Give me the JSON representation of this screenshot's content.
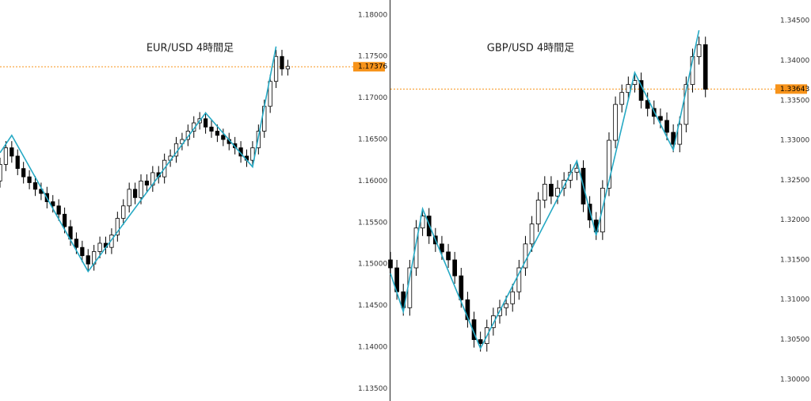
{
  "chart_data": [
    {
      "type": "candlestick",
      "title": "EUR/USD 4時間足",
      "ylim": [
        1.1335,
        1.1818
      ],
      "yticks": [
        {
          "value": 1.135,
          "label": "1.13500"
        },
        {
          "value": 1.14,
          "label": "1.14000"
        },
        {
          "value": 1.145,
          "label": "1.14500"
        },
        {
          "value": 1.15,
          "label": "1.15000"
        },
        {
          "value": 1.155,
          "label": "1.15500"
        },
        {
          "value": 1.16,
          "label": "1.16000"
        },
        {
          "value": 1.165,
          "label": "1.16500"
        },
        {
          "value": 1.17,
          "label": "1.17000"
        },
        {
          "value": 1.175,
          "label": "1.17500"
        },
        {
          "value": 1.18,
          "label": "1.18000"
        }
      ],
      "xlim": [
        0,
        60
      ],
      "candle_color": "#000000",
      "last_price": 1.17376,
      "last_price_color": "#f7931a",
      "open": [
        1.16,
        1.162,
        1.164,
        1.163,
        1.1615,
        1.1605,
        1.1598,
        1.159,
        1.1585,
        1.1575,
        1.157,
        1.156,
        1.1545,
        1.153,
        1.152,
        1.151,
        1.15,
        1.1515,
        1.1525,
        1.152,
        1.1535,
        1.1555,
        1.157,
        1.159,
        1.158,
        1.16,
        1.1595,
        1.161,
        1.1605,
        1.1625,
        1.163,
        1.1645,
        1.165,
        1.166,
        1.167,
        1.1675,
        1.1665,
        1.166,
        1.1655,
        1.165,
        1.1645,
        1.164,
        1.163,
        1.1625,
        1.164,
        1.166,
        1.169,
        1.172,
        1.175,
        1.1735
      ],
      "high": [
        1.1628,
        1.1648,
        1.1648,
        1.1638,
        1.1623,
        1.1613,
        1.1606,
        1.1598,
        1.1593,
        1.1583,
        1.1578,
        1.1568,
        1.1553,
        1.1538,
        1.1528,
        1.1518,
        1.1523,
        1.1533,
        1.1533,
        1.1543,
        1.1563,
        1.1578,
        1.1598,
        1.1598,
        1.1608,
        1.1608,
        1.1618,
        1.1618,
        1.1633,
        1.1638,
        1.1653,
        1.1658,
        1.1668,
        1.1678,
        1.1683,
        1.1683,
        1.1673,
        1.1668,
        1.1663,
        1.1658,
        1.1653,
        1.1648,
        1.1638,
        1.1648,
        1.1668,
        1.1698,
        1.1728,
        1.1758,
        1.1758,
        1.1746
      ],
      "low": [
        1.1592,
        1.1612,
        1.1622,
        1.1607,
        1.1597,
        1.159,
        1.1582,
        1.1577,
        1.1567,
        1.1562,
        1.1552,
        1.1537,
        1.1522,
        1.1512,
        1.1502,
        1.1492,
        1.1492,
        1.1507,
        1.1512,
        1.1512,
        1.1527,
        1.1547,
        1.1562,
        1.1572,
        1.1572,
        1.1587,
        1.1587,
        1.1597,
        1.1597,
        1.1617,
        1.1622,
        1.1637,
        1.1642,
        1.1652,
        1.1662,
        1.1657,
        1.1652,
        1.1647,
        1.1642,
        1.1637,
        1.1632,
        1.1622,
        1.1617,
        1.1617,
        1.1632,
        1.1652,
        1.1682,
        1.1712,
        1.1727,
        1.1727
      ],
      "close": [
        1.162,
        1.164,
        1.163,
        1.1615,
        1.1605,
        1.1598,
        1.159,
        1.1585,
        1.1575,
        1.157,
        1.156,
        1.1545,
        1.153,
        1.152,
        1.151,
        1.15,
        1.1515,
        1.1525,
        1.152,
        1.1535,
        1.1555,
        1.157,
        1.159,
        1.158,
        1.16,
        1.1595,
        1.161,
        1.1605,
        1.1625,
        1.163,
        1.1645,
        1.165,
        1.166,
        1.167,
        1.1675,
        1.1665,
        1.166,
        1.1655,
        1.165,
        1.1645,
        1.164,
        1.163,
        1.1625,
        1.164,
        1.166,
        1.169,
        1.172,
        1.175,
        1.1735,
        1.1738
      ],
      "zigzag": {
        "color": "#26a9c4",
        "x": [
          0,
          2,
          15,
          35,
          43,
          47
        ],
        "values": [
          1.1634,
          1.1655,
          1.1491,
          1.1682,
          1.1617,
          1.1762
        ]
      }
    },
    {
      "type": "candlestick",
      "title": "GBP/USD 4時間足",
      "ylim": [
        1.2973,
        1.3476
      ],
      "yticks": [
        {
          "value": 1.3,
          "label": "1.30000"
        },
        {
          "value": 1.305,
          "label": "1.30500"
        },
        {
          "value": 1.31,
          "label": "1.31000"
        },
        {
          "value": 1.315,
          "label": "1.31500"
        },
        {
          "value": 1.32,
          "label": "1.32000"
        },
        {
          "value": 1.325,
          "label": "1.32500"
        },
        {
          "value": 1.33,
          "label": "1.33000"
        },
        {
          "value": 1.335,
          "label": "1.33500"
        },
        {
          "value": 1.34,
          "label": "1.34000"
        },
        {
          "value": 1.345,
          "label": "1.34500"
        }
      ],
      "xlim": [
        0,
        60
      ],
      "candle_color": "#000000",
      "last_price": 1.33643,
      "last_price_color": "#f7931a",
      "open": [
        1.315,
        1.314,
        1.311,
        1.309,
        1.314,
        1.319,
        1.3205,
        1.318,
        1.317,
        1.316,
        1.315,
        1.313,
        1.31,
        1.3075,
        1.305,
        1.3045,
        1.3065,
        1.308,
        1.309,
        1.3095,
        1.311,
        1.314,
        1.317,
        1.3195,
        1.3225,
        1.3245,
        1.323,
        1.324,
        1.325,
        1.326,
        1.3265,
        1.322,
        1.32,
        1.3185,
        1.324,
        1.33,
        1.3345,
        1.336,
        1.337,
        1.3375,
        1.335,
        1.334,
        1.333,
        1.3325,
        1.331,
        1.3295,
        1.332,
        1.337,
        1.3405,
        1.342
      ],
      "high": [
        1.316,
        1.315,
        1.312,
        1.315,
        1.32,
        1.3215,
        1.3215,
        1.319,
        1.318,
        1.317,
        1.316,
        1.314,
        1.311,
        1.3085,
        1.306,
        1.3075,
        1.309,
        1.31,
        1.3105,
        1.312,
        1.315,
        1.318,
        1.3205,
        1.3235,
        1.3255,
        1.3255,
        1.325,
        1.326,
        1.327,
        1.3275,
        1.3275,
        1.323,
        1.321,
        1.325,
        1.331,
        1.3355,
        1.337,
        1.338,
        1.3385,
        1.3385,
        1.336,
        1.335,
        1.334,
        1.3335,
        1.332,
        1.333,
        1.338,
        1.3415,
        1.343,
        1.343
      ],
      "low": [
        1.313,
        1.31,
        1.308,
        1.308,
        1.313,
        1.318,
        1.317,
        1.316,
        1.315,
        1.314,
        1.312,
        1.309,
        1.3065,
        1.304,
        1.3035,
        1.3035,
        1.3055,
        1.307,
        1.308,
        1.3085,
        1.31,
        1.313,
        1.316,
        1.3185,
        1.3215,
        1.322,
        1.322,
        1.323,
        1.324,
        1.325,
        1.321,
        1.319,
        1.3175,
        1.3175,
        1.323,
        1.329,
        1.3335,
        1.335,
        1.336,
        1.334,
        1.333,
        1.332,
        1.3315,
        1.33,
        1.3285,
        1.3285,
        1.331,
        1.336,
        1.3395,
        1.3354
      ],
      "close": [
        1.314,
        1.311,
        1.309,
        1.314,
        1.319,
        1.3205,
        1.318,
        1.317,
        1.316,
        1.315,
        1.313,
        1.31,
        1.3075,
        1.305,
        1.3045,
        1.3065,
        1.308,
        1.309,
        1.3095,
        1.311,
        1.314,
        1.317,
        1.3195,
        1.3225,
        1.3245,
        1.323,
        1.324,
        1.325,
        1.326,
        1.3265,
        1.322,
        1.32,
        1.3185,
        1.324,
        1.33,
        1.3345,
        1.336,
        1.337,
        1.3375,
        1.335,
        1.334,
        1.333,
        1.3325,
        1.331,
        1.3295,
        1.332,
        1.337,
        1.3405,
        1.342,
        1.3364
      ],
      "zigzag": {
        "color": "#26a9c4",
        "x": [
          0,
          2,
          5,
          14,
          29,
          32,
          38,
          44,
          48
        ],
        "values": [
          1.3133,
          1.3085,
          1.3214,
          1.3039,
          1.3274,
          1.3181,
          1.3385,
          1.3288,
          1.3438
        ]
      }
    }
  ]
}
